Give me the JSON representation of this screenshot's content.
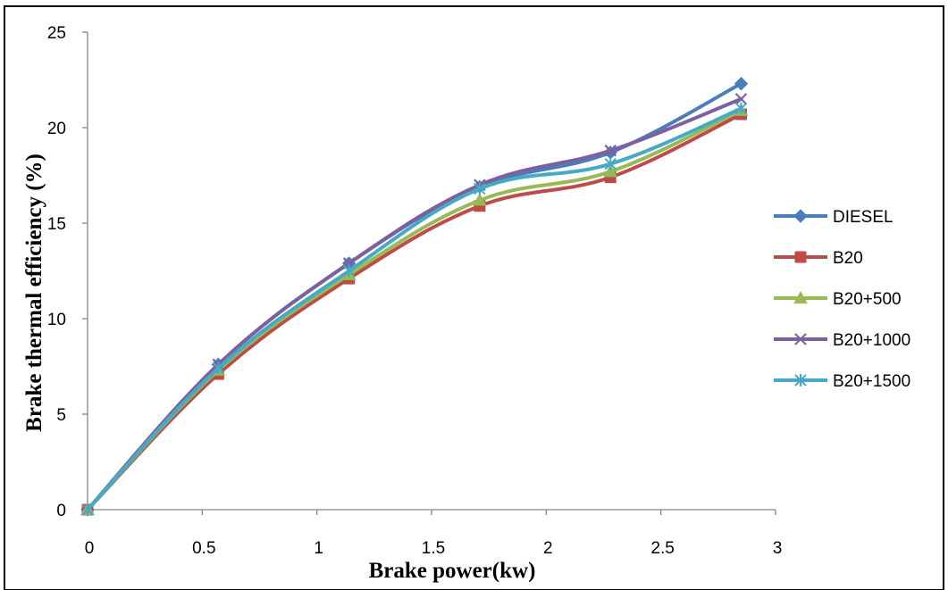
{
  "chart_data": {
    "type": "line",
    "xlabel": "Brake power(kw)",
    "ylabel": "Brake thermal efficiency (%)",
    "xlim": [
      0,
      3
    ],
    "ylim": [
      0,
      25
    ],
    "x_ticks": [
      "0",
      "0.5",
      "1",
      "1.5",
      "2",
      "2.5",
      "3"
    ],
    "y_ticks": [
      "0",
      "5",
      "10",
      "15",
      "20",
      "25"
    ],
    "x": [
      0,
      0.57,
      1.14,
      1.71,
      2.28,
      2.85
    ],
    "grid": false,
    "legend_position": "right",
    "series": [
      {
        "name": "DIESEL",
        "color": "#4a7ebb",
        "marker": "diamond",
        "values": [
          0,
          7.6,
          12.9,
          16.9,
          18.7,
          22.3
        ]
      },
      {
        "name": "B20",
        "color": "#be4b48",
        "marker": "square",
        "values": [
          0,
          7.1,
          12.1,
          15.9,
          17.4,
          20.7
        ]
      },
      {
        "name": "B20+500",
        "color": "#98b954",
        "marker": "triangle",
        "values": [
          0,
          7.3,
          12.3,
          16.2,
          17.7,
          20.9
        ]
      },
      {
        "name": "B20+1000",
        "color": "#7d60a0",
        "marker": "x",
        "values": [
          0,
          7.6,
          12.9,
          17.0,
          18.8,
          21.5
        ]
      },
      {
        "name": "B20+1500",
        "color": "#46aac5",
        "marker": "star",
        "values": [
          0,
          7.4,
          12.5,
          16.8,
          18.1,
          21.0
        ]
      }
    ]
  }
}
